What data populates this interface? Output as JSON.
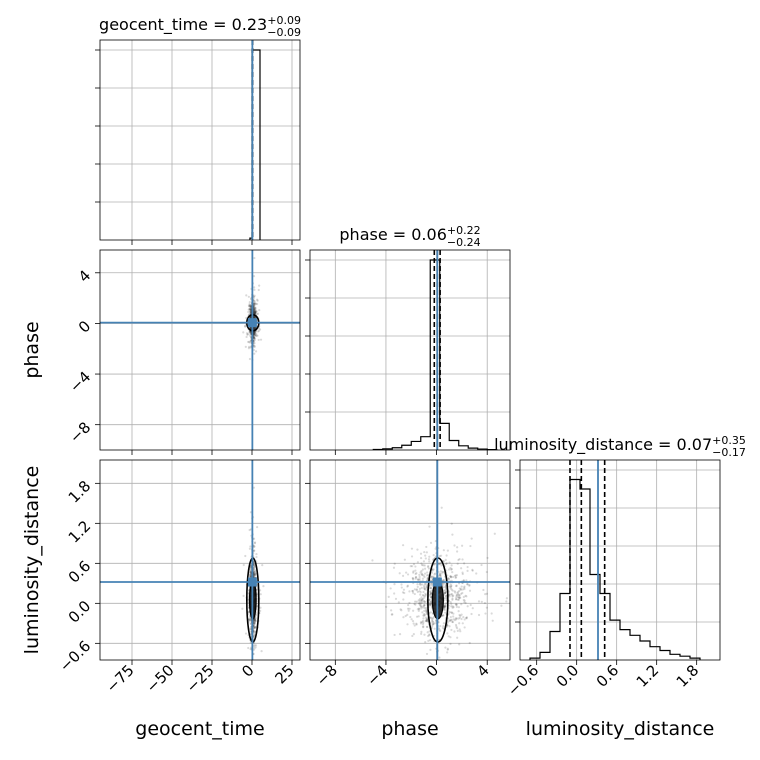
{
  "colors": {
    "truth": "#4682b4",
    "hist": "#000000",
    "grid": "#b0b0b0",
    "scatter": "#333333"
  },
  "chart_data": {
    "type": "corner",
    "parameters": [
      "geocent_time",
      "phase",
      "luminosity_distance"
    ],
    "truths": {
      "geocent_time": 0.23,
      "phase": 0.06,
      "luminosity_distance": 0.32
    },
    "titles": [
      {
        "param": "geocent_time",
        "name": "geocent_time",
        "value": "0.23",
        "upper": "+0.09",
        "lower": "−0.09"
      },
      {
        "param": "phase",
        "name": "phase",
        "value": "0.06",
        "upper": "+0.22",
        "lower": "−0.24"
      },
      {
        "param": "luminosity_distance",
        "name": "luminosity_distance",
        "value": "0.07",
        "upper": "+0.35",
        "lower": "−0.17"
      }
    ],
    "axis_labels": {
      "x": [
        "geocent_time",
        "phase",
        "luminosity_distance"
      ],
      "y": [
        "phase",
        "luminosity_distance"
      ]
    },
    "ranges": {
      "geocent_time": [
        -95,
        30
      ],
      "phase": [
        -10,
        5.8
      ],
      "luminosity_distance": [
        -0.85,
        2.15
      ]
    },
    "ticks": {
      "geocent_time": {
        "values": [
          -75,
          -50,
          -25,
          0,
          25
        ],
        "labels": [
          "−75",
          "−50",
          "−25",
          "0",
          "25"
        ]
      },
      "phase": {
        "values": [
          -8,
          -4,
          0,
          4
        ],
        "labels": [
          "−8",
          "−4",
          "0",
          "4"
        ]
      },
      "luminosity_distance": {
        "values": [
          -0.6,
          0.0,
          0.6,
          1.2,
          1.8
        ],
        "labels": [
          "−0.6",
          "0.0",
          "0.6",
          "1.2",
          "1.8"
        ]
      }
    },
    "quantiles": {
      "geocent_time": [
        0.14,
        0.23,
        0.32
      ],
      "phase": [
        -0.18,
        0.06,
        0.28
      ],
      "luminosity_distance": [
        -0.1,
        0.07,
        0.42
      ]
    },
    "histograms": {
      "geocent_time": {
        "edges": [
          -1.3,
          0,
          5.0
        ],
        "heights": [
          0.01,
          1.0
        ]
      },
      "phase": {
        "edges": [
          -5.0,
          -4.25,
          -3.5,
          -2.75,
          -2.0,
          -1.25,
          -0.5,
          0.25,
          1.0,
          1.75,
          2.5,
          3.25,
          4.0,
          4.75
        ],
        "heights": [
          0.003,
          0.006,
          0.012,
          0.025,
          0.045,
          0.07,
          1.0,
          0.14,
          0.05,
          0.022,
          0.01,
          0.005,
          0.002
        ]
      },
      "luminosity_distance": {
        "edges": [
          -0.7,
          -0.55,
          -0.4,
          -0.25,
          -0.1,
          0.05,
          0.2,
          0.35,
          0.5,
          0.65,
          0.8,
          0.95,
          1.1,
          1.25,
          1.4,
          1.55,
          1.7,
          1.85
        ],
        "heights": [
          0.01,
          0.04,
          0.15,
          0.35,
          0.95,
          0.9,
          0.45,
          0.35,
          0.21,
          0.16,
          0.13,
          0.1,
          0.07,
          0.05,
          0.03,
          0.02,
          0.01
        ]
      }
    },
    "grid": true
  }
}
